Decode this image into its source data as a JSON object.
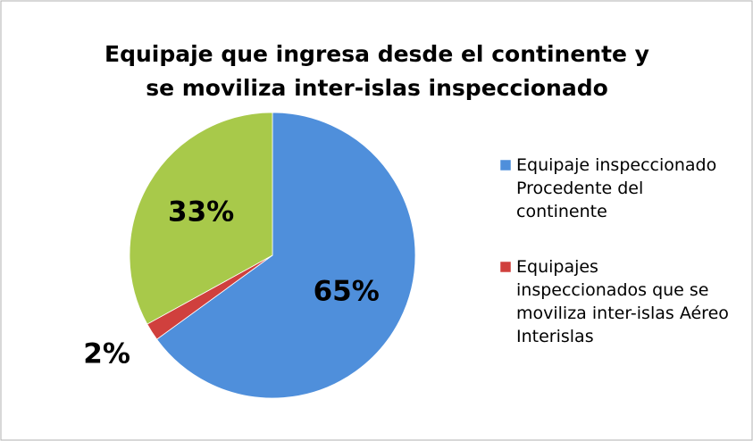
{
  "chart_data": {
    "type": "pie",
    "title": "Equipaje que ingresa desde el continente y se moviliza inter-islas inspeccionado",
    "categories": [
      "Equipaje inspeccionado Procedente del continente",
      "Equipajes inspeccionados que se moviliza inter-islas Aéreo Interislas",
      null
    ],
    "values": [
      65,
      2,
      33
    ],
    "value_labels": [
      "65%",
      "2%",
      "33%"
    ],
    "colors": [
      "#4f8fdb",
      "#d0403d",
      "#a8c94a"
    ],
    "legend": "right"
  }
}
